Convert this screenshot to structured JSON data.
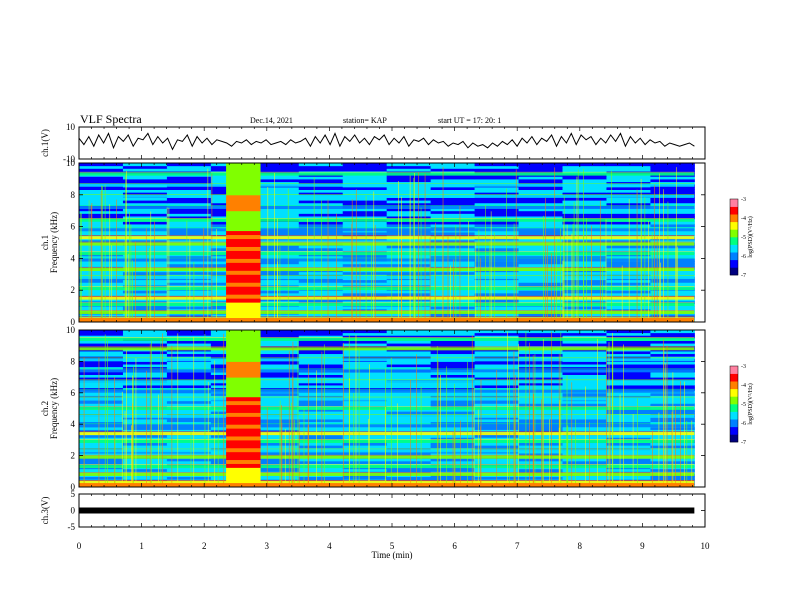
{
  "header": {
    "title": "VLF Spectra",
    "date": "Dec.14, 2021",
    "station": "station= KAP",
    "start": "start  UT =   17: 20: 1"
  },
  "colors": {
    "spectrogram_scale": [
      "#000080",
      "#0000ff",
      "#0080ff",
      "#00e0ff",
      "#00ff80",
      "#80ff00",
      "#ffff00",
      "#ff8000",
      "#ff0000",
      "#ff80a0",
      "#ffffff"
    ],
    "trace": "#000000"
  },
  "chart_data": [
    {
      "type": "line",
      "panel": "ch1-waveform",
      "ylabel": "ch.1(V)",
      "ylim": [
        -10,
        10
      ],
      "yticks": [
        "10",
        "-10"
      ],
      "x_range_min": [
        0,
        10
      ],
      "series": [
        {
          "values": [
            3,
            -1,
            4,
            -2,
            5,
            0,
            6,
            -3,
            4,
            1,
            5,
            -2,
            3,
            2,
            6,
            -1,
            4,
            0,
            3,
            -4,
            2,
            1,
            5,
            -2,
            4,
            0,
            3,
            -1,
            2,
            1,
            0,
            -2,
            1,
            0,
            2,
            -1,
            1,
            0,
            2,
            -1,
            0,
            1,
            -1,
            2,
            0,
            1,
            3,
            -2,
            4,
            0,
            5,
            -1,
            6,
            -2,
            4,
            1,
            5,
            0,
            3,
            -1,
            4,
            2,
            5,
            -1,
            3,
            0,
            4,
            -2,
            2,
            1,
            3,
            -1,
            2,
            0,
            1,
            -2,
            0,
            -1,
            1,
            -3,
            0,
            -2,
            -1,
            -3,
            0,
            -2,
            1,
            -1,
            2,
            -2,
            3,
            0,
            4,
            -1,
            3,
            1,
            5,
            -2,
            4,
            0,
            6,
            -1,
            5,
            2,
            4,
            -1,
            3,
            0,
            5,
            1,
            6,
            -2,
            4,
            0,
            3,
            -1,
            2,
            0,
            1,
            -2,
            0,
            -1,
            -2,
            -1,
            0,
            -2
          ]
        }
      ]
    },
    {
      "type": "heatmap",
      "panel": "ch1-spectrogram",
      "ylabel": "ch.1\nFrequency (kHz)",
      "ylim": [
        0,
        10
      ],
      "yticks": [
        "0",
        "2",
        "4",
        "6",
        "8",
        "10"
      ],
      "colorbar": {
        "label": "log(PSD)(V²/Hz)",
        "range": [
          -7,
          -3
        ],
        "ticks": [
          "-3",
          "-4",
          "-5",
          "-6",
          "-7"
        ]
      },
      "bright_interval_min": [
        2.35,
        2.9
      ],
      "bands_khz": [
        {
          "f": 0.2,
          "level": 6
        },
        {
          "f": 0.6,
          "level": 5
        },
        {
          "f": 1.1,
          "level": 4
        },
        {
          "f": 1.5,
          "level": 6
        },
        {
          "f": 2.1,
          "level": 4
        },
        {
          "f": 2.8,
          "level": 3
        },
        {
          "f": 3.3,
          "level": 5
        },
        {
          "f": 3.9,
          "level": 2
        },
        {
          "f": 4.3,
          "level": 4
        },
        {
          "f": 4.9,
          "level": 5
        },
        {
          "f": 5.3,
          "level": 6
        },
        {
          "f": 5.8,
          "level": 2
        },
        {
          "f": 6.4,
          "level": 4
        },
        {
          "f": 7.2,
          "level": 2
        },
        {
          "f": 7.9,
          "level": 3
        },
        {
          "f": 8.6,
          "level": 3
        },
        {
          "f": 9.3,
          "level": 4
        }
      ]
    },
    {
      "type": "heatmap",
      "panel": "ch2-spectrogram",
      "ylabel": "ch.2\nFrequency (kHz)",
      "ylim": [
        0,
        10
      ],
      "yticks": [
        "0",
        "2",
        "4",
        "6",
        "8",
        "10"
      ],
      "colorbar": {
        "label": "log(PSD)(V²/Hz)",
        "range": [
          -7,
          -3
        ],
        "ticks": [
          "-3",
          "-4",
          "-5",
          "-6",
          "-7"
        ]
      },
      "bright_interval_min": [
        2.35,
        2.9
      ],
      "bands_khz": [
        {
          "f": 0.3,
          "level": 6
        },
        {
          "f": 0.8,
          "level": 5
        },
        {
          "f": 1.3,
          "level": 4
        },
        {
          "f": 1.9,
          "level": 5
        },
        {
          "f": 2.3,
          "level": 3
        },
        {
          "f": 2.9,
          "level": 4
        },
        {
          "f": 3.4,
          "level": 6
        },
        {
          "f": 3.9,
          "level": 2
        },
        {
          "f": 4.5,
          "level": 3
        },
        {
          "f": 5.0,
          "level": 4
        },
        {
          "f": 5.6,
          "level": 3
        },
        {
          "f": 6.1,
          "level": 2
        },
        {
          "f": 6.7,
          "level": 3
        },
        {
          "f": 7.4,
          "level": 2
        },
        {
          "f": 8.1,
          "level": 3
        },
        {
          "f": 8.8,
          "level": 5
        },
        {
          "f": 9.4,
          "level": 4
        }
      ]
    },
    {
      "type": "line",
      "panel": "ch3-waveform",
      "ylabel": "ch.3(V)",
      "ylim": [
        -5,
        5
      ],
      "yticks": [
        "5",
        "0",
        "-5"
      ],
      "series": [
        {
          "values": [
            0
          ]
        }
      ]
    }
  ],
  "x_axis": {
    "label": "Time  (min)",
    "range": [
      0,
      10
    ],
    "ticks": [
      "0",
      "1",
      "2",
      "3",
      "4",
      "5",
      "6",
      "7",
      "8",
      "9",
      "10"
    ]
  }
}
